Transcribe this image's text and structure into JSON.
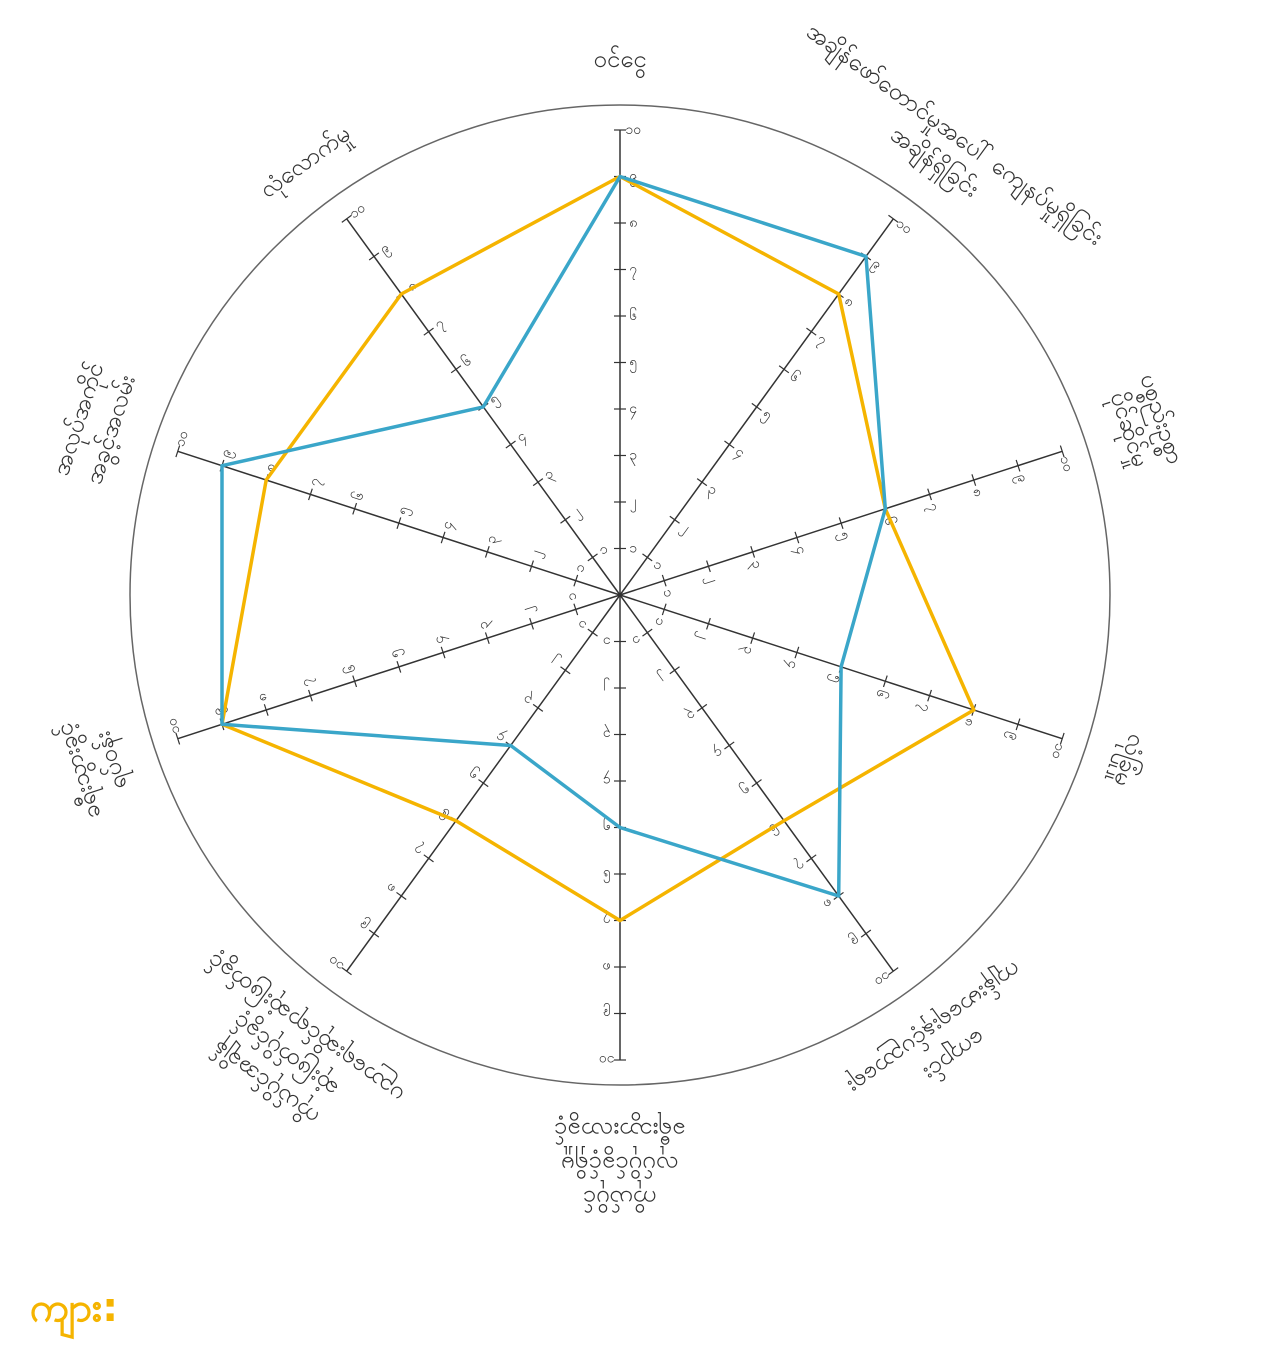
{
  "chart_data": {
    "type": "radar",
    "categories": [
      [
        "ဝင်ငွေ"
      ],
      [
        "အချိန်ဖော်တောင်မှုအပေါ် ကျေနပ်မှုရှိခြင်း",
        "အချိန်ရှိခြင်း"
      ],
      [
        "ပစ္စည်းဥစ္စာ",
        "ပိုင်ဆိုင်မှု"
      ],
      [
        "လုံခြုံမှု"
      ],
      [
        "ကျောင်း",
        "ကျန်းမာရေးနှင့်ပညာရေး"
      ],
      [
        "ကိုယ်ပိုင်",
        "လုပ်ပိုင်ခွင့်ရှိမှု",
        "ခရီးသွားလာခွင့်"
      ],
      [
        "ကိုယ်ပိုင်အချိန်",
        "ဆုံးဖြတ်ပိုင်ခွင့်",
        "ပညာရေးဆိုင်ရာဆုံးဖြတ်ခွင့်"
      ],
      [
        "ခရီးသွားခွင့်",
        "ရပ်ဝန်း"
      ],
      [
        "အလုပ်အကိုင်",
        "အခွင့်အလမ်း"
      ],
      [
        "လုံလောက်မှု"
      ]
    ],
    "series": [
      {
        "name": "ကျား:",
        "color": "#f5b400",
        "values": [
          9,
          8,
          6,
          8,
          6,
          7,
          6,
          9,
          8,
          8
        ]
      },
      {
        "color": "#3aa6c9",
        "values": [
          9,
          9,
          6,
          5,
          8,
          5,
          4,
          9,
          9,
          5
        ]
      }
    ],
    "rlim": [
      0,
      10
    ],
    "rticks": [
      {
        "value": 1,
        "label": "၁"
      },
      {
        "value": 2,
        "label": "၂"
      },
      {
        "value": 3,
        "label": "၃"
      },
      {
        "value": 4,
        "label": "၄"
      },
      {
        "value": 5,
        "label": "၅"
      },
      {
        "value": 6,
        "label": "၆"
      },
      {
        "value": 7,
        "label": "၇"
      },
      {
        "value": 8,
        "label": "၈"
      },
      {
        "value": 9,
        "label": "၉"
      },
      {
        "value": 10,
        "label": "၁၀"
      }
    ]
  }
}
